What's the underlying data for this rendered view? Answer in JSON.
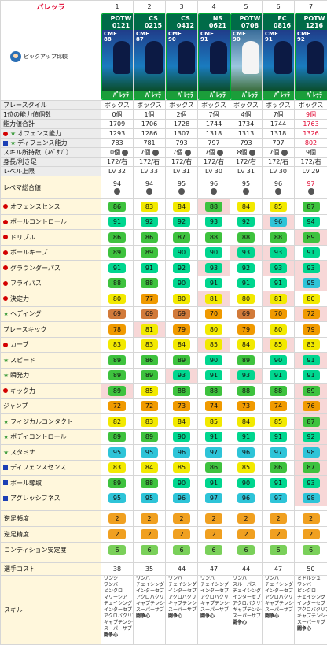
{
  "header": {
    "title": "バレッラ",
    "pickup": "ピックアップ比較",
    "cols": [
      "1",
      "2",
      "3",
      "4",
      "5",
      "6",
      "7"
    ]
  },
  "cards": [
    {
      "tag": "POTW",
      "date": "0121",
      "rating": "88",
      "pos": "CMF",
      "name": "ﾊﾞﾚｯﾗ",
      "style": "dark"
    },
    {
      "tag": "CS",
      "date": "0215",
      "rating": "87",
      "pos": "CMF",
      "name": "ﾊﾞﾚｯﾗ",
      "style": "dark"
    },
    {
      "tag": "CS",
      "date": "0412",
      "rating": "90",
      "pos": "CMF",
      "name": "ﾊﾞﾚｯﾗ",
      "style": "dark"
    },
    {
      "tag": "NS",
      "date": "0621",
      "rating": "91",
      "pos": "CMF",
      "name": "ﾊﾞﾚｯﾗ",
      "style": "dark"
    },
    {
      "tag": "POTW",
      "date": "0708",
      "rating": "90",
      "pos": "CMF",
      "name": "ﾊﾞﾚｯﾗ",
      "style": "white"
    },
    {
      "tag": "FC",
      "date": "0816",
      "rating": "91",
      "pos": "CMF",
      "name": "ﾊﾞﾚｯﾗ",
      "style": "dark"
    },
    {
      "tag": "POTW",
      "date": "1216",
      "rating": "92",
      "pos": "CMF",
      "name": "ﾊﾞﾚｯﾗ",
      "style": "dark"
    }
  ],
  "info": [
    {
      "label": "プレースタイル",
      "values": [
        "ボックス",
        "ボックス",
        "ボックス",
        "ボックス",
        "ボックス",
        "ボックス",
        "ボックス"
      ]
    },
    {
      "label": "1位の能力値個数",
      "values": [
        "0個",
        "1個",
        "2個",
        "7個",
        "4個",
        "7個",
        "9個"
      ],
      "hl": [
        6
      ]
    },
    {
      "label": "能力値合計",
      "values": [
        "1709",
        "1706",
        "1728",
        "1744",
        "1734",
        "1744",
        "1763"
      ],
      "hl": [
        6
      ]
    },
    {
      "label": "オフェンス能力",
      "mark": "dot-star",
      "values": [
        "1293",
        "1286",
        "1307",
        "1318",
        "1313",
        "1318",
        "1326"
      ],
      "hl": [
        6
      ]
    },
    {
      "label": "ディフェンス能力",
      "mark": "sq-star",
      "values": [
        "783",
        "781",
        "793",
        "797",
        "793",
        "797",
        "802"
      ],
      "hl": [
        6
      ]
    },
    {
      "label": "スキル所持数（ｽﾍﾟｻﾌﾞ）",
      "values": [
        "10個",
        "7個",
        "7個",
        "7個",
        "8個",
        "7個",
        "9個"
      ],
      "gear": true
    },
    {
      "label": "身長/利き足",
      "values": [
        "172/右",
        "172/右",
        "172/右",
        "172/右",
        "172/右",
        "172/右",
        "172/右"
      ]
    },
    {
      "label": "レベル上限",
      "values": [
        "Lv 32",
        "Lv 33",
        "Lv 31",
        "Lv 30",
        "Lv 31",
        "Lv 30",
        "Lv 29"
      ]
    }
  ],
  "remake": {
    "label": "レベマ総合値",
    "values": [
      "94",
      "94",
      "95",
      "96",
      "95",
      "96",
      "97"
    ],
    "hl": [
      6
    ]
  },
  "stats": [
    {
      "label": "オフェンスセンス",
      "mark": "dot",
      "values": [
        86,
        83,
        84,
        88,
        84,
        85,
        87
      ]
    },
    {
      "label": "ボールコントロール",
      "mark": "dot",
      "values": [
        91,
        92,
        92,
        93,
        92,
        96,
        94
      ]
    },
    {
      "label": "ドリブル",
      "mark": "dot",
      "values": [
        86,
        86,
        87,
        88,
        88,
        88,
        89
      ]
    },
    {
      "label": "ボールキープ",
      "mark": "dot",
      "values": [
        89,
        89,
        90,
        90,
        93,
        93,
        91
      ]
    },
    {
      "label": "グラウンダーパス",
      "mark": "dot",
      "values": [
        91,
        91,
        92,
        93,
        92,
        93,
        93
      ]
    },
    {
      "label": "フライパス",
      "mark": "dot",
      "values": [
        88,
        88,
        90,
        91,
        91,
        91,
        95
      ]
    },
    {
      "label": "決定力",
      "mark": "dot",
      "values": [
        80,
        77,
        80,
        81,
        80,
        81,
        80
      ]
    },
    {
      "label": "ヘディング",
      "mark": "star",
      "values": [
        69,
        69,
        69,
        70,
        69,
        70,
        72
      ]
    },
    {
      "label": "プレースキック",
      "mark": "none",
      "values": [
        78,
        81,
        79,
        80,
        79,
        80,
        79
      ]
    },
    {
      "label": "カーブ",
      "mark": "dot",
      "values": [
        83,
        83,
        84,
        85,
        84,
        85,
        83
      ]
    },
    {
      "label": "スピード",
      "mark": "star",
      "values": [
        89,
        86,
        89,
        90,
        89,
        90,
        91
      ]
    },
    {
      "label": "瞬発力",
      "mark": "star",
      "values": [
        89,
        89,
        93,
        91,
        93,
        91,
        91
      ]
    },
    {
      "label": "キック力",
      "mark": "dot",
      "values": [
        89,
        85,
        88,
        88,
        88,
        88,
        89
      ]
    },
    {
      "label": "ジャンプ",
      "mark": "none",
      "values": [
        72,
        72,
        73,
        74,
        73,
        74,
        76
      ]
    },
    {
      "label": "フィジカルコンタクト",
      "mark": "star",
      "values": [
        82,
        83,
        84,
        85,
        84,
        85,
        87
      ]
    },
    {
      "label": "ボディコントロール",
      "mark": "star",
      "values": [
        89,
        89,
        90,
        91,
        91,
        91,
        92
      ]
    },
    {
      "label": "スタミナ",
      "mark": "star",
      "values": [
        95,
        95,
        96,
        97,
        96,
        97,
        98
      ]
    },
    {
      "label": "ディフェンスセンス",
      "mark": "sq",
      "values": [
        83,
        84,
        85,
        86,
        85,
        86,
        87
      ]
    },
    {
      "label": "ボール奪取",
      "mark": "sq",
      "values": [
        89,
        88,
        90,
        91,
        90,
        91,
        93
      ]
    },
    {
      "label": "アグレッシブネス",
      "mark": "sq",
      "values": [
        95,
        95,
        96,
        97,
        96,
        97,
        98
      ]
    }
  ],
  "extra": [
    {
      "label": "逆足頻度",
      "values": [
        "2",
        "2",
        "2",
        "2",
        "2",
        "2",
        "2"
      ]
    },
    {
      "label": "逆足精度",
      "values": [
        "2",
        "2",
        "2",
        "2",
        "2",
        "2",
        "2"
      ]
    },
    {
      "label": "コンディション安定度",
      "values": [
        "6",
        "6",
        "6",
        "6",
        "6",
        "6",
        "6"
      ]
    }
  ],
  "cost": {
    "label": "選手コスト",
    "values": [
      "38",
      "35",
      "44",
      "47",
      "44",
      "47",
      "50"
    ]
  },
  "skills": {
    "label": "スキル",
    "values": [
      [
        "ワンシ",
        "ワンバ",
        "ピンクロ",
        "マリーシア",
        "チェイシング",
        "インターセプト",
        "アクロバクリア",
        "キャプテンシー",
        "スーパーサブ"
      ],
      [
        "ワンバ",
        "チェイシング",
        "インターセプト",
        "アクロバクリア",
        "キャプテンシー",
        "スーパーサブ"
      ],
      [
        "ワンバ",
        "チェイシング",
        "インターセプト",
        "アクロバクリア",
        "キャプテンシー",
        "スーパーサブ"
      ],
      [
        "ワンバ",
        "チェイシング",
        "インターセプト",
        "アクロバクリア",
        "キャプテンシー",
        "スーパーサブ"
      ],
      [
        "ワンバ",
        "スルーパス",
        "チェイシング",
        "インターセプト",
        "アクロバクリア",
        "キャプテンシー",
        "スーパーサブ"
      ],
      [
        "ワンバ",
        "チェイシング",
        "インターセプト",
        "アクロバクリア",
        "キャプテンシー",
        "スーパーサブ"
      ],
      [
        "ミドルシュ",
        "ワンバ",
        "ピンクロ",
        "チェイシング",
        "インターセプト",
        "アクロバクリア",
        "キャプテンシー",
        "スーパーサブ"
      ]
    ],
    "bold": [
      [
        "闘争心"
      ],
      [
        "闘争心"
      ],
      [
        "闘争心"
      ],
      [
        "闘争心"
      ],
      [
        "闘争心"
      ],
      [
        "闘争心"
      ],
      [
        "闘争心"
      ]
    ]
  }
}
